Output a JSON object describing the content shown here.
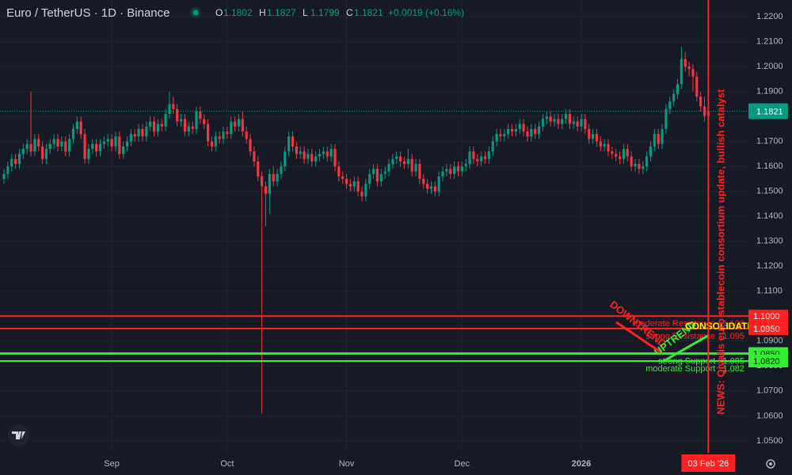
{
  "chart_data": {
    "type": "candlestick",
    "title": "Euro / TetherUS · 1D · Binance",
    "ohlc_labels": [
      "O",
      "H",
      "L",
      "C"
    ],
    "change_label": "+0.0019 (+0.16%)",
    "up_color": "#089981",
    "down_color": "#f23645",
    "categories": [
      null,
      null,
      null,
      null,
      null,
      null,
      null,
      null,
      null,
      null,
      null,
      null,
      null,
      null,
      null,
      null,
      null,
      null,
      null,
      null,
      null,
      null,
      null,
      null,
      null,
      null,
      null,
      null,
      "Sep",
      null,
      null,
      null,
      null,
      null,
      null,
      null,
      null,
      null,
      null,
      null,
      null,
      null,
      null,
      null,
      null,
      null,
      null,
      null,
      null,
      null,
      null,
      null,
      null,
      null,
      null,
      null,
      null,
      null,
      "Oct",
      null,
      null,
      null,
      null,
      null,
      null,
      null,
      null,
      null,
      null,
      null,
      null,
      null,
      null,
      null,
      null,
      null,
      null,
      null,
      null,
      null,
      null,
      null,
      null,
      null,
      null,
      null,
      null,
      null,
      null,
      "Nov",
      null,
      null,
      null,
      null,
      null,
      null,
      null,
      null,
      null,
      null,
      null,
      null,
      null,
      null,
      null,
      null,
      null,
      null,
      null,
      null,
      null,
      null,
      null,
      null,
      null,
      null,
      null,
      null,
      null,
      "Dec",
      null,
      null,
      null,
      null,
      null,
      null,
      null,
      null,
      null,
      null,
      null,
      null,
      null,
      null,
      null,
      null,
      null,
      null,
      null,
      null,
      null,
      null,
      null,
      null,
      null,
      null,
      null,
      null,
      null,
      null,
      "2026",
      null,
      null,
      null,
      null,
      null,
      null,
      null,
      null,
      null,
      null,
      null,
      null,
      null,
      null,
      null,
      null,
      null,
      null,
      null,
      null,
      null,
      null,
      null,
      null,
      null,
      null,
      null,
      null,
      null,
      null,
      null,
      null,
      null
    ],
    "open": [
      1.155,
      1.157,
      1.16,
      1.163,
      1.161,
      1.165,
      1.167,
      1.169,
      1.166,
      1.171,
      1.168,
      1.163,
      1.167,
      1.169,
      1.171,
      1.168,
      1.17,
      1.166,
      1.171,
      1.175,
      1.178,
      1.173,
      1.163,
      1.167,
      1.169,
      1.166,
      1.169,
      1.17,
      1.171,
      1.168,
      1.172,
      1.165,
      1.168,
      1.17,
      1.173,
      1.172,
      1.175,
      1.172,
      1.176,
      1.178,
      1.174,
      1.177,
      1.176,
      1.181,
      1.185,
      1.183,
      1.178,
      1.179,
      1.174,
      1.176,
      1.175,
      1.182,
      1.179,
      1.177,
      1.17,
      1.168,
      1.172,
      1.171,
      1.174,
      1.173,
      1.178,
      1.176,
      1.179,
      1.174,
      1.171,
      1.166,
      1.162,
      1.156,
      1.152,
      1.149,
      1.157,
      1.154,
      1.157,
      1.16,
      1.166,
      1.172,
      1.168,
      1.165,
      1.166,
      1.163,
      1.165,
      1.162,
      1.164,
      1.165,
      1.166,
      1.164,
      1.167,
      1.16,
      1.156,
      1.155,
      1.153,
      1.152,
      1.154,
      1.15,
      1.148,
      1.153,
      1.157,
      1.159,
      1.154,
      1.157,
      1.158,
      1.161,
      1.163,
      1.164,
      1.162,
      1.161,
      1.163,
      1.158,
      1.161,
      1.155,
      1.153,
      1.151,
      1.152,
      1.15,
      1.156,
      1.158,
      1.159,
      1.157,
      1.16,
      1.158,
      1.16,
      1.161,
      1.166,
      1.163,
      1.162,
      1.164,
      1.163,
      1.166,
      1.17,
      1.173,
      1.172,
      1.173,
      1.175,
      1.174,
      1.175,
      1.177,
      1.174,
      1.172,
      1.175,
      1.173,
      1.176,
      1.179,
      1.18,
      1.178,
      1.179,
      1.177,
      1.179,
      1.181,
      1.177,
      1.178,
      1.176,
      1.179,
      1.175,
      1.171,
      1.173,
      1.17,
      1.168,
      1.169,
      1.166,
      1.165,
      1.164,
      1.163,
      1.167,
      1.164,
      1.16,
      1.161,
      1.159,
      1.16,
      1.164,
      1.168,
      1.173,
      1.169,
      1.175,
      1.183,
      1.186,
      1.189,
      1.193,
      1.203,
      1.2,
      1.199,
      1.196,
      1.188,
      1.184,
      1.1802
    ],
    "high": [
      1.159,
      1.162,
      1.165,
      1.165,
      1.167,
      1.169,
      1.171,
      1.19,
      1.173,
      1.173,
      1.17,
      1.169,
      1.171,
      1.173,
      1.173,
      1.172,
      1.172,
      1.173,
      1.177,
      1.18,
      1.18,
      1.175,
      1.169,
      1.171,
      1.171,
      1.171,
      1.172,
      1.173,
      1.173,
      1.174,
      1.174,
      1.17,
      1.172,
      1.175,
      1.175,
      1.177,
      1.177,
      1.178,
      1.18,
      1.18,
      1.179,
      1.179,
      1.183,
      1.19,
      1.188,
      1.185,
      1.181,
      1.181,
      1.178,
      1.178,
      1.184,
      1.184,
      1.181,
      1.179,
      1.172,
      1.174,
      1.174,
      1.176,
      1.176,
      1.18,
      1.18,
      1.181,
      1.182,
      1.176,
      1.173,
      1.168,
      1.164,
      1.158,
      1.154,
      1.159,
      1.16,
      1.159,
      1.162,
      1.168,
      1.174,
      1.174,
      1.17,
      1.168,
      1.168,
      1.167,
      1.167,
      1.166,
      1.167,
      1.168,
      1.168,
      1.169,
      1.169,
      1.162,
      1.158,
      1.157,
      1.155,
      1.156,
      1.156,
      1.152,
      1.155,
      1.159,
      1.161,
      1.161,
      1.159,
      1.16,
      1.163,
      1.165,
      1.166,
      1.166,
      1.164,
      1.167,
      1.165,
      1.163,
      1.163,
      1.157,
      1.155,
      1.154,
      1.154,
      1.158,
      1.16,
      1.161,
      1.161,
      1.162,
      1.162,
      1.162,
      1.163,
      1.168,
      1.168,
      1.165,
      1.166,
      1.166,
      1.168,
      1.172,
      1.175,
      1.175,
      1.175,
      1.177,
      1.177,
      1.177,
      1.179,
      1.179,
      1.176,
      1.177,
      1.177,
      1.178,
      1.181,
      1.182,
      1.182,
      1.181,
      1.181,
      1.181,
      1.183,
      1.183,
      1.18,
      1.18,
      1.181,
      1.181,
      1.177,
      1.175,
      1.175,
      1.172,
      1.171,
      1.171,
      1.168,
      1.167,
      1.166,
      1.169,
      1.169,
      1.166,
      1.163,
      1.163,
      1.162,
      1.166,
      1.17,
      1.175,
      1.175,
      1.177,
      1.185,
      1.188,
      1.191,
      1.195,
      1.208,
      1.206,
      1.202,
      1.201,
      1.198,
      1.19,
      1.188,
      1.1827
    ],
    "low": [
      1.153,
      1.155,
      1.158,
      1.159,
      1.159,
      1.163,
      1.165,
      1.164,
      1.164,
      1.166,
      1.161,
      1.161,
      1.165,
      1.167,
      1.166,
      1.166,
      1.164,
      1.164,
      1.169,
      1.173,
      1.171,
      1.161,
      1.161,
      1.165,
      1.164,
      1.164,
      1.167,
      1.168,
      1.166,
      1.166,
      1.163,
      1.163,
      1.166,
      1.168,
      1.17,
      1.17,
      1.17,
      1.17,
      1.174,
      1.172,
      1.172,
      1.174,
      1.174,
      1.179,
      1.181,
      1.176,
      1.176,
      1.172,
      1.172,
      1.173,
      1.173,
      1.177,
      1.175,
      1.168,
      1.166,
      1.166,
      1.169,
      1.169,
      1.171,
      1.171,
      1.174,
      1.174,
      1.172,
      1.169,
      1.164,
      1.16,
      1.154,
      1.061,
      1.136,
      1.141,
      1.152,
      1.152,
      1.155,
      1.158,
      1.164,
      1.166,
      1.163,
      1.163,
      1.161,
      1.161,
      1.16,
      1.16,
      1.162,
      1.163,
      1.162,
      1.162,
      1.158,
      1.154,
      1.153,
      1.151,
      1.15,
      1.15,
      1.148,
      1.146,
      1.146,
      1.151,
      1.155,
      1.152,
      1.152,
      1.155,
      1.156,
      1.159,
      1.161,
      1.16,
      1.159,
      1.159,
      1.156,
      1.156,
      1.153,
      1.151,
      1.149,
      1.149,
      1.148,
      1.148,
      1.154,
      1.156,
      1.155,
      1.155,
      1.156,
      1.156,
      1.158,
      1.159,
      1.161,
      1.16,
      1.16,
      1.161,
      1.161,
      1.164,
      1.168,
      1.17,
      1.17,
      1.171,
      1.172,
      1.172,
      1.173,
      1.172,
      1.17,
      1.17,
      1.171,
      1.171,
      1.174,
      1.177,
      1.176,
      1.176,
      1.175,
      1.175,
      1.177,
      1.175,
      1.175,
      1.174,
      1.174,
      1.173,
      1.169,
      1.169,
      1.168,
      1.166,
      1.166,
      1.164,
      1.163,
      1.162,
      1.161,
      1.161,
      1.162,
      1.158,
      1.158,
      1.157,
      1.157,
      1.158,
      1.162,
      1.166,
      1.167,
      1.167,
      1.173,
      1.181,
      1.184,
      1.187,
      1.191,
      1.198,
      1.196,
      1.19,
      1.186,
      1.182,
      1.178,
      1.1799
    ],
    "close": [
      1.157,
      1.16,
      1.163,
      1.161,
      1.165,
      1.167,
      1.169,
      1.166,
      1.171,
      1.168,
      1.163,
      1.167,
      1.169,
      1.171,
      1.168,
      1.17,
      1.166,
      1.171,
      1.175,
      1.178,
      1.173,
      1.163,
      1.167,
      1.169,
      1.166,
      1.169,
      1.17,
      1.171,
      1.168,
      1.172,
      1.165,
      1.168,
      1.17,
      1.173,
      1.172,
      1.175,
      1.172,
      1.176,
      1.178,
      1.174,
      1.177,
      1.176,
      1.181,
      1.185,
      1.183,
      1.178,
      1.179,
      1.174,
      1.176,
      1.175,
      1.182,
      1.179,
      1.177,
      1.17,
      1.168,
      1.172,
      1.171,
      1.174,
      1.173,
      1.178,
      1.176,
      1.179,
      1.174,
      1.171,
      1.166,
      1.162,
      1.156,
      1.152,
      1.149,
      1.157,
      1.154,
      1.157,
      1.16,
      1.166,
      1.172,
      1.168,
      1.165,
      1.166,
      1.163,
      1.165,
      1.162,
      1.164,
      1.165,
      1.166,
      1.164,
      1.167,
      1.16,
      1.156,
      1.155,
      1.153,
      1.152,
      1.154,
      1.15,
      1.148,
      1.153,
      1.157,
      1.159,
      1.154,
      1.157,
      1.158,
      1.161,
      1.163,
      1.164,
      1.162,
      1.161,
      1.163,
      1.158,
      1.161,
      1.155,
      1.153,
      1.151,
      1.152,
      1.15,
      1.156,
      1.158,
      1.159,
      1.157,
      1.16,
      1.158,
      1.16,
      1.161,
      1.166,
      1.163,
      1.162,
      1.164,
      1.163,
      1.166,
      1.17,
      1.173,
      1.172,
      1.173,
      1.175,
      1.174,
      1.175,
      1.177,
      1.174,
      1.172,
      1.175,
      1.173,
      1.176,
      1.179,
      1.18,
      1.178,
      1.179,
      1.177,
      1.179,
      1.181,
      1.177,
      1.178,
      1.176,
      1.179,
      1.175,
      1.171,
      1.173,
      1.17,
      1.168,
      1.169,
      1.166,
      1.165,
      1.164,
      1.163,
      1.167,
      1.164,
      1.16,
      1.161,
      1.159,
      1.16,
      1.164,
      1.168,
      1.173,
      1.169,
      1.175,
      1.183,
      1.186,
      1.189,
      1.193,
      1.203,
      1.2,
      1.199,
      1.196,
      1.188,
      1.184,
      1.1802,
      1.1821
    ],
    "ylim": [
      1.0452,
      1.2267
    ],
    "yticks": [
      {
        "value": 1.22,
        "label": "1.2200"
      },
      {
        "value": 1.21,
        "label": "1.2100"
      },
      {
        "value": 1.2,
        "label": "1.2000"
      },
      {
        "value": 1.19,
        "label": "1.1900"
      },
      {
        "value": 1.18,
        "label": "1.1800"
      },
      {
        "value": 1.17,
        "label": "1.1700"
      },
      {
        "value": 1.16,
        "label": "1.1600"
      },
      {
        "value": 1.15,
        "label": "1.1500"
      },
      {
        "value": 1.14,
        "label": "1.1400"
      },
      {
        "value": 1.13,
        "label": "1.1300"
      },
      {
        "value": 1.12,
        "label": "1.1200"
      },
      {
        "value": 1.11,
        "label": "1.1100"
      },
      {
        "value": 1.1,
        "label": "1.1000"
      },
      {
        "value": 1.09,
        "label": "1.0900"
      },
      {
        "value": 1.08,
        "label": "1.0800"
      },
      {
        "value": 1.07,
        "label": "1.0700"
      },
      {
        "value": 1.06,
        "label": "1.0600"
      },
      {
        "value": 1.05,
        "label": "1.0500"
      }
    ],
    "grid": true,
    "levels": [
      {
        "label": "moderate Resistance : 1.100",
        "value": 1.1,
        "tag": "1.1000",
        "color": "#ff2020",
        "text_color": "#ffffff"
      },
      {
        "label": "strong Resistance : 1.095",
        "value": 1.095,
        "tag": "1.0950",
        "color": "#ff2020",
        "text_color": "#ffffff"
      },
      {
        "label": "strong Support : 1.085",
        "value": 1.085,
        "tag": "1.0850",
        "color": "#33ee33",
        "text_color": "#000000"
      },
      {
        "label": "moderate Support : 1.082",
        "value": 1.082,
        "tag": "1.0820",
        "color": "#33ee33",
        "text_color": "#000000"
      }
    ],
    "annotations": [
      {
        "text": "DOWNTREND",
        "color": "#ff2020"
      },
      {
        "text": "UPTREND",
        "color": "#33ee33"
      },
      {
        "text": "CONSOLIDATION",
        "color": "#ffee00"
      }
    ],
    "news": {
      "text": "NEWS: Qivalis euro stablecoin consortium update, bullish catalyst",
      "date": "03 Feb '26",
      "color": "#ff2020"
    }
  }
}
